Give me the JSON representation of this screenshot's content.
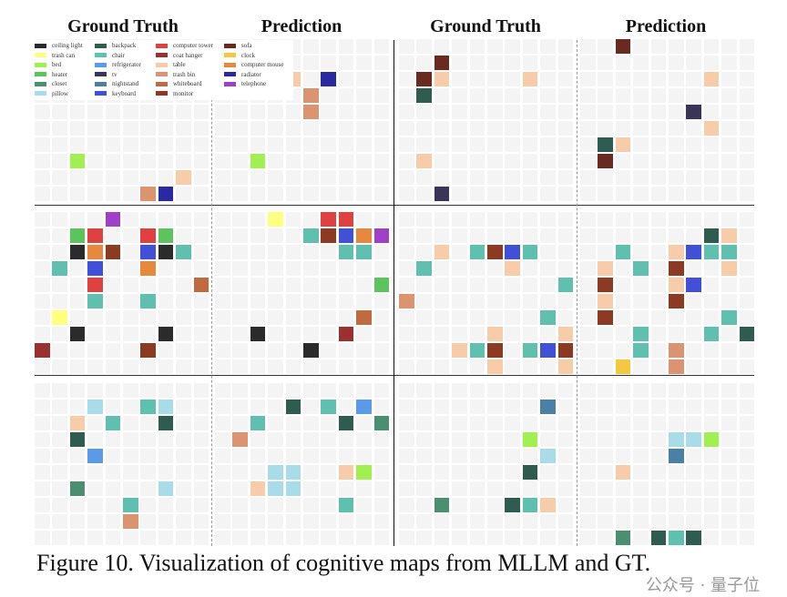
{
  "titles": [
    "Ground Truth",
    "Prediction",
    "Ground Truth",
    "Prediction"
  ],
  "caption": "Figure 10. Visualization of cognitive maps from MLLM and GT.",
  "watermark": "公众号 · 量子位",
  "legend": [
    {
      "key": "cl",
      "label": "ceiling light",
      "color": "#2b2b2b"
    },
    {
      "key": "tc",
      "label": "trash can",
      "color": "#ffff80"
    },
    {
      "key": "bd",
      "label": "bed",
      "color": "#a0f050"
    },
    {
      "key": "ht",
      "label": "heater",
      "color": "#5cc45c"
    },
    {
      "key": "cs",
      "label": "closet",
      "color": "#4a9070"
    },
    {
      "key": "pl",
      "label": "pillow",
      "color": "#a8dce8"
    },
    {
      "key": "bp",
      "label": "backpack",
      "color": "#2f5c50"
    },
    {
      "key": "ch",
      "label": "chair",
      "color": "#60c0b0"
    },
    {
      "key": "rf",
      "label": "refrigerator",
      "color": "#5a9ae8"
    },
    {
      "key": "tv",
      "label": "tv",
      "color": "#3a3558"
    },
    {
      "key": "ns",
      "label": "nightstand",
      "color": "#4a80a8"
    },
    {
      "key": "kb",
      "label": "keyboard",
      "color": "#4050d8"
    },
    {
      "key": "ct",
      "label": "computer tower",
      "color": "#e04040"
    },
    {
      "key": "co",
      "label": "coat hanger",
      "color": "#9a3030"
    },
    {
      "key": "tb",
      "label": "table",
      "color": "#f8cca8"
    },
    {
      "key": "tn",
      "label": "trash bin",
      "color": "#dc9470"
    },
    {
      "key": "wb",
      "label": "whiteboard",
      "color": "#c06a40"
    },
    {
      "key": "mn",
      "label": "monitor",
      "color": "#8c3a22"
    },
    {
      "key": "sf",
      "label": "sofa",
      "color": "#6a2a20"
    },
    {
      "key": "ck",
      "label": "clock",
      "color": "#f4c840"
    },
    {
      "key": "cm",
      "label": "computer mouse",
      "color": "#e8883c"
    },
    {
      "key": "rd",
      "label": "radiator",
      "color": "#2a2aa0"
    },
    {
      "key": "tp",
      "label": "telephone",
      "color": "#a040c8"
    }
  ],
  "grid_size": [
    10,
    10
  ],
  "maps": [
    {
      "scene": 1,
      "kind": "Ground Truth",
      "cells": [
        [
          7,
          2,
          "bd"
        ],
        [
          8,
          8,
          "tb"
        ],
        [
          9,
          6,
          "tn"
        ],
        [
          9,
          7,
          "rd"
        ]
      ]
    },
    {
      "scene": 1,
      "kind": "Prediction",
      "cells": [
        [
          2,
          4,
          "tb"
        ],
        [
          2,
          6,
          "rd"
        ],
        [
          3,
          5,
          "tn"
        ],
        [
          4,
          5,
          "tn"
        ],
        [
          7,
          2,
          "bd"
        ]
      ]
    },
    {
      "scene": 2,
      "kind": "Ground Truth",
      "cells": [
        [
          1,
          2,
          "sf"
        ],
        [
          2,
          1,
          "sf"
        ],
        [
          2,
          2,
          "tb"
        ],
        [
          2,
          7,
          "tb"
        ],
        [
          3,
          1,
          "bp"
        ],
        [
          7,
          1,
          "tb"
        ],
        [
          9,
          2,
          "tv"
        ]
      ]
    },
    {
      "scene": 2,
      "kind": "Prediction",
      "cells": [
        [
          0,
          2,
          "sf"
        ],
        [
          2,
          7,
          "tb"
        ],
        [
          4,
          6,
          "tv"
        ],
        [
          5,
          7,
          "tb"
        ],
        [
          6,
          1,
          "bp"
        ],
        [
          6,
          2,
          "tb"
        ],
        [
          7,
          1,
          "sf"
        ]
      ]
    },
    {
      "scene": 3,
      "kind": "Ground Truth",
      "cells": [
        [
          0,
          4,
          "tp"
        ],
        [
          1,
          2,
          "ht"
        ],
        [
          1,
          3,
          "ct"
        ],
        [
          1,
          6,
          "ct"
        ],
        [
          1,
          7,
          "ht"
        ],
        [
          2,
          2,
          "cl"
        ],
        [
          2,
          3,
          "cm"
        ],
        [
          2,
          4,
          "mn"
        ],
        [
          2,
          6,
          "kb"
        ],
        [
          2,
          7,
          "cl"
        ],
        [
          2,
          8,
          "ch"
        ],
        [
          3,
          1,
          "ch"
        ],
        [
          3,
          3,
          "kb"
        ],
        [
          3,
          6,
          "cm"
        ],
        [
          4,
          3,
          "ct"
        ],
        [
          4,
          9,
          "wb"
        ],
        [
          5,
          3,
          "ch"
        ],
        [
          5,
          6,
          "ch"
        ],
        [
          6,
          1,
          "tc"
        ],
        [
          7,
          2,
          "cl"
        ],
        [
          7,
          7,
          "cl"
        ],
        [
          8,
          0,
          "co"
        ],
        [
          8,
          6,
          "mn"
        ]
      ]
    },
    {
      "scene": 3,
      "kind": "Prediction",
      "cells": [
        [
          0,
          3,
          "tc"
        ],
        [
          0,
          6,
          "ct"
        ],
        [
          0,
          7,
          "ct"
        ],
        [
          1,
          5,
          "ch"
        ],
        [
          1,
          6,
          "mn"
        ],
        [
          1,
          7,
          "kb"
        ],
        [
          1,
          8,
          "cm"
        ],
        [
          1,
          9,
          "tp"
        ],
        [
          2,
          7,
          "ch"
        ],
        [
          2,
          8,
          "ch"
        ],
        [
          4,
          9,
          "ht"
        ],
        [
          6,
          8,
          "wb"
        ],
        [
          7,
          2,
          "cl"
        ],
        [
          7,
          7,
          "co"
        ],
        [
          8,
          5,
          "cl"
        ]
      ]
    },
    {
      "scene": 4,
      "kind": "Ground Truth",
      "cells": [
        [
          2,
          2,
          "tb"
        ],
        [
          2,
          4,
          "ch"
        ],
        [
          2,
          5,
          "mn"
        ],
        [
          2,
          6,
          "kb"
        ],
        [
          2,
          7,
          "ch"
        ],
        [
          3,
          1,
          "ch"
        ],
        [
          3,
          6,
          "tb"
        ],
        [
          4,
          9,
          "ch"
        ],
        [
          5,
          0,
          "tn"
        ],
        [
          6,
          8,
          "ch"
        ],
        [
          7,
          5,
          "tb"
        ],
        [
          7,
          9,
          "tb"
        ],
        [
          8,
          3,
          "tb"
        ],
        [
          8,
          4,
          "ch"
        ],
        [
          8,
          5,
          "mn"
        ],
        [
          8,
          7,
          "ch"
        ],
        [
          8,
          8,
          "kb"
        ],
        [
          8,
          9,
          "mn"
        ],
        [
          9,
          5,
          "tb"
        ],
        [
          9,
          9,
          "tb"
        ]
      ]
    },
    {
      "scene": 4,
      "kind": "Prediction",
      "cells": [
        [
          1,
          7,
          "bp"
        ],
        [
          1,
          8,
          "tb"
        ],
        [
          2,
          2,
          "ch"
        ],
        [
          2,
          5,
          "tb"
        ],
        [
          2,
          6,
          "kb"
        ],
        [
          2,
          7,
          "ch"
        ],
        [
          2,
          8,
          "ch"
        ],
        [
          3,
          1,
          "tb"
        ],
        [
          3,
          3,
          "ch"
        ],
        [
          3,
          5,
          "mn"
        ],
        [
          3,
          8,
          "tb"
        ],
        [
          4,
          1,
          "mn"
        ],
        [
          4,
          5,
          "tb"
        ],
        [
          4,
          6,
          "kb"
        ],
        [
          5,
          1,
          "tb"
        ],
        [
          5,
          5,
          "mn"
        ],
        [
          6,
          1,
          "mn"
        ],
        [
          6,
          8,
          "ch"
        ],
        [
          7,
          3,
          "ch"
        ],
        [
          7,
          7,
          "ch"
        ],
        [
          7,
          9,
          "bp"
        ],
        [
          8,
          3,
          "ch"
        ],
        [
          8,
          5,
          "tn"
        ],
        [
          9,
          2,
          "ck"
        ],
        [
          9,
          5,
          "tn"
        ]
      ]
    },
    {
      "scene": 5,
      "kind": "Ground Truth",
      "cells": [
        [
          1,
          3,
          "pl"
        ],
        [
          1,
          6,
          "ch"
        ],
        [
          1,
          7,
          "pl"
        ],
        [
          2,
          2,
          "tb"
        ],
        [
          2,
          4,
          "ch"
        ],
        [
          2,
          7,
          "bp"
        ],
        [
          3,
          2,
          "bp"
        ],
        [
          4,
          3,
          "rf"
        ],
        [
          6,
          2,
          "cs"
        ],
        [
          6,
          7,
          "pl"
        ],
        [
          7,
          5,
          "ch"
        ],
        [
          8,
          5,
          "tn"
        ]
      ]
    },
    {
      "scene": 5,
      "kind": "Prediction",
      "cells": [
        [
          1,
          4,
          "bp"
        ],
        [
          1,
          6,
          "ch"
        ],
        [
          1,
          8,
          "rf"
        ],
        [
          2,
          2,
          "ch"
        ],
        [
          2,
          7,
          "bp"
        ],
        [
          2,
          9,
          "cs"
        ],
        [
          3,
          1,
          "tn"
        ],
        [
          5,
          3,
          "pl"
        ],
        [
          5,
          4,
          "pl"
        ],
        [
          5,
          7,
          "tb"
        ],
        [
          5,
          8,
          "bd"
        ],
        [
          6,
          2,
          "tb"
        ],
        [
          6,
          3,
          "pl"
        ],
        [
          6,
          4,
          "pl"
        ],
        [
          7,
          7,
          "ch"
        ]
      ]
    },
    {
      "scene": 6,
      "kind": "Ground Truth",
      "cells": [
        [
          1,
          8,
          "ns"
        ],
        [
          3,
          7,
          "bd"
        ],
        [
          4,
          8,
          "pl"
        ],
        [
          5,
          7,
          "bp"
        ],
        [
          7,
          2,
          "cs"
        ],
        [
          7,
          6,
          "bp"
        ],
        [
          7,
          7,
          "ch"
        ],
        [
          7,
          8,
          "tb"
        ]
      ]
    },
    {
      "scene": 6,
      "kind": "Prediction",
      "cells": [
        [
          3,
          5,
          "pl"
        ],
        [
          3,
          6,
          "pl"
        ],
        [
          3,
          7,
          "bd"
        ],
        [
          4,
          5,
          "ns"
        ],
        [
          5,
          2,
          "tb"
        ],
        [
          9,
          2,
          "cs"
        ],
        [
          9,
          4,
          "bp"
        ],
        [
          9,
          5,
          "ch"
        ],
        [
          9,
          6,
          "bp"
        ]
      ]
    }
  ]
}
